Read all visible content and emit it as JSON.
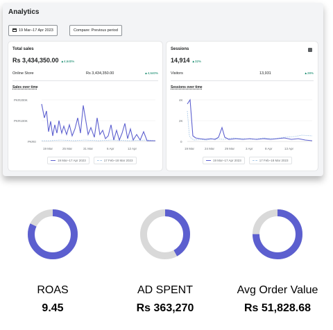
{
  "analytics": {
    "title": "Analytics",
    "date_range": "19 Mar–17 Apr 2023",
    "compare": "Compare: Previous period"
  },
  "total_sales": {
    "title": "Total sales",
    "value": "Rs 3,434,350.00",
    "change": "▲4,640%",
    "row_label": "Online Store",
    "row_value": "Rs 3,434,350.00",
    "row_change": "▲4,640%",
    "chart_title": "Sales over time",
    "y_ticks": [
      "PKR200K",
      "PKR100K",
      "PKR0"
    ],
    "x_ticks": [
      "19 Mar",
      "25 Mar",
      "31 Mar",
      "6 Apr",
      "12 Apr"
    ],
    "legend_current": "19 Mar–17 Apr 2023",
    "legend_previous": "17 Feb–18 Mar 2023"
  },
  "sessions": {
    "title": "Sessions",
    "value": "14,914",
    "change": "▲32%",
    "row_label": "Visitors",
    "row_value": "13,931",
    "row_change": "▲28%",
    "chart_title": "Sessions over time",
    "y_ticks": [
      "4K",
      "2K",
      "0"
    ],
    "x_ticks": [
      "19 Mar",
      "24 Mar",
      "29 Mar",
      "3 Apr",
      "8 Apr",
      "13 Apr"
    ],
    "legend_current": "19 Mar–17 Apr 2023",
    "legend_previous": "17 Feb–18 Mar 2023"
  },
  "metrics": [
    {
      "label": "ROAS",
      "value": "9.45",
      "fill": 0.82
    },
    {
      "label": "AD SPENT",
      "value": "Rs 363,270",
      "fill": 0.42
    },
    {
      "label": "Avg Order Value",
      "value": "Rs 51,828.68",
      "fill": 0.75
    }
  ],
  "colors": {
    "accent": "#5c5fcf",
    "ring_bg": "#d9d9d9",
    "positive": "#008060"
  }
}
